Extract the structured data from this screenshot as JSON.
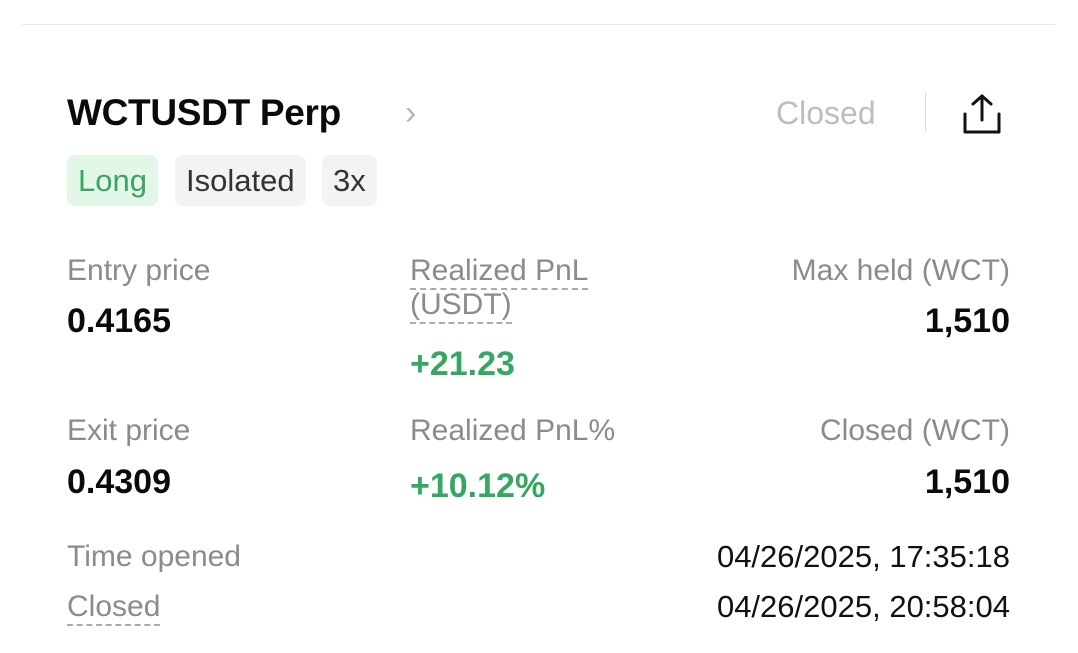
{
  "header": {
    "title": "WCTUSDT Perp",
    "status": "Closed",
    "share_icon": "share-icon",
    "chevron_icon": "chevron-right-icon"
  },
  "tags": {
    "side": "Long",
    "margin_mode": "Isolated",
    "leverage": "3x"
  },
  "stats": {
    "entry_price_label": "Entry price",
    "entry_price": "0.4165",
    "realized_pnl_label_line1": "Realized PnL",
    "realized_pnl_label_line2": "(USDT)",
    "realized_pnl": "+21.23",
    "max_held_label": "Max held (WCT)",
    "max_held": "1,510",
    "exit_price_label": "Exit price",
    "exit_price": "0.4309",
    "realized_pnl_pct_label": "Realized PnL%",
    "realized_pnl_pct": "+10.12%",
    "closed_qty_label": "Closed (WCT)",
    "closed_qty": "1,510"
  },
  "times": {
    "opened_label": "Time opened",
    "opened": "04/26/2025, 17:35:18",
    "closed_label": "Closed",
    "closed": "04/26/2025, 20:58:04"
  },
  "colors": {
    "profit": "#34a861",
    "long_tag_bg": "#e3f7e8",
    "muted": "#8b8b8b"
  }
}
